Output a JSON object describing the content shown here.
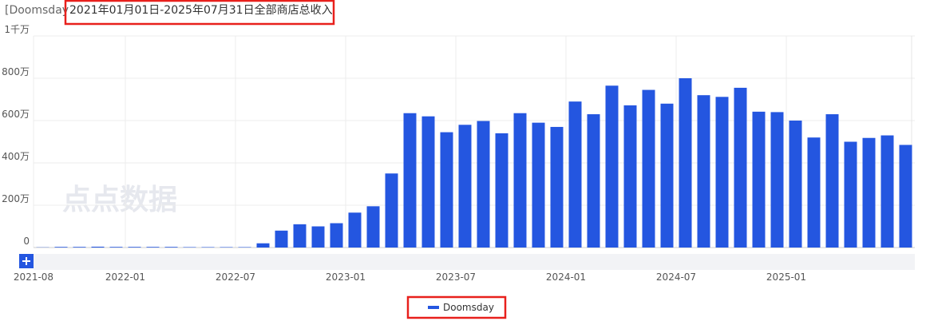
{
  "chart_data": {
    "type": "bar",
    "title_prefix": "[Doomsday",
    "title": "2021年01月01日-2025年07月31日全部商店总收入",
    "watermark": "点点数据",
    "categories": [
      "2021-08",
      null,
      null,
      null,
      null,
      "2022-01",
      null,
      null,
      null,
      null,
      null,
      "2022-07",
      null,
      null,
      null,
      null,
      null,
      "2023-01",
      null,
      null,
      null,
      null,
      null,
      "2023-07",
      null,
      null,
      null,
      null,
      null,
      "2024-01",
      null,
      null,
      null,
      null,
      null,
      "2024-07",
      null,
      null,
      null,
      null,
      null,
      "2025-01",
      null,
      null,
      null,
      null,
      null,
      null
    ],
    "series": [
      {
        "name": "Doomsday",
        "color": "#2456e0",
        "values": [
          1,
          3,
          3,
          4,
          3,
          3,
          3,
          3,
          2,
          2,
          2,
          2,
          20,
          80,
          110,
          100,
          115,
          165,
          195,
          350,
          635,
          620,
          545,
          580,
          598,
          540,
          635,
          590,
          570,
          690,
          630,
          765,
          672,
          745,
          680,
          800,
          720,
          712,
          755,
          642,
          640,
          600,
          520,
          630,
          500,
          518,
          530,
          485
        ]
      }
    ],
    "ylim": [
      0,
      1000
    ],
    "yticks": [
      0,
      {
        "value": 200,
        "label": "200万"
      },
      {
        "value": 400,
        "label": "400万"
      },
      {
        "value": 600,
        "label": "600万"
      },
      {
        "value": 800,
        "label": "800万"
      },
      {
        "value": 1000,
        "label": "1千万"
      }
    ],
    "grid": true
  }
}
